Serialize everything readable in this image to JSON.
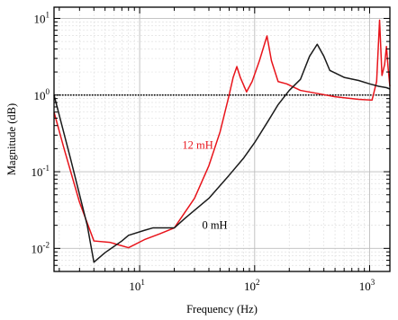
{
  "chart_data": {
    "type": "line",
    "xlabel": "Frequency (Hz)",
    "ylabel": "Magnitude (dB)",
    "xscale": "log",
    "yscale": "log",
    "xlim": [
      1.8,
      1500
    ],
    "ylim": [
      0.005,
      14
    ],
    "grid": true,
    "x_ticks": [
      {
        "value": 10,
        "base": "10",
        "exp": "1"
      },
      {
        "value": 100,
        "base": "10",
        "exp": "2"
      },
      {
        "value": 1000,
        "base": "10",
        "exp": "3"
      }
    ],
    "y_ticks": [
      {
        "value": 0.01,
        "base": "10",
        "exp": "-2"
      },
      {
        "value": 0.1,
        "base": "10",
        "exp": "-1"
      },
      {
        "value": 1,
        "base": "10",
        "exp": "0"
      },
      {
        "value": 10,
        "base": "10",
        "exp": "1"
      }
    ],
    "reference_line": {
      "y": 1.0,
      "style": "dotted",
      "color": "#000000"
    },
    "series": [
      {
        "name": "12 mH",
        "color": "#e8141b",
        "points": [
          [
            1.8,
            0.6
          ],
          [
            2.2,
            0.2
          ],
          [
            3.0,
            0.04
          ],
          [
            4.0,
            0.0125
          ],
          [
            5.5,
            0.012
          ],
          [
            8.0,
            0.0102
          ],
          [
            11.0,
            0.013
          ],
          [
            15.0,
            0.0155
          ],
          [
            20.0,
            0.0185
          ],
          [
            30.0,
            0.045
          ],
          [
            40.0,
            0.12
          ],
          [
            50.0,
            0.33
          ],
          [
            60.0,
            1.0
          ],
          [
            65.0,
            1.7
          ],
          [
            70.0,
            2.35
          ],
          [
            75.0,
            1.7
          ],
          [
            85.0,
            1.1
          ],
          [
            95.0,
            1.5
          ],
          [
            110.0,
            2.8
          ],
          [
            128.0,
            5.9
          ],
          [
            140.0,
            2.8
          ],
          [
            160.0,
            1.5
          ],
          [
            190.0,
            1.4
          ],
          [
            250.0,
            1.15
          ],
          [
            350.0,
            1.05
          ],
          [
            500.0,
            0.95
          ],
          [
            800.0,
            0.88
          ],
          [
            1050.0,
            0.86
          ],
          [
            1150.0,
            1.5
          ],
          [
            1220.0,
            9.5
          ],
          [
            1280.0,
            1.8
          ],
          [
            1350.0,
            2.5
          ],
          [
            1400.0,
            4.3
          ],
          [
            1450.0,
            2.2
          ],
          [
            1500.0,
            1.3
          ]
        ]
      },
      {
        "name": "0 mH",
        "color": "#1a1a1a",
        "points": [
          [
            1.8,
            1.0
          ],
          [
            2.5,
            0.15
          ],
          [
            3.5,
            0.02
          ],
          [
            4.0,
            0.0066
          ],
          [
            5.0,
            0.0088
          ],
          [
            7.0,
            0.0125
          ],
          [
            8.0,
            0.0148
          ],
          [
            11.0,
            0.0172
          ],
          [
            13.0,
            0.0185
          ],
          [
            20.0,
            0.0185
          ],
          [
            25.0,
            0.025
          ],
          [
            40.0,
            0.045
          ],
          [
            60.0,
            0.09
          ],
          [
            80.0,
            0.15
          ],
          [
            100.0,
            0.24
          ],
          [
            130.0,
            0.45
          ],
          [
            160.0,
            0.75
          ],
          [
            200.0,
            1.15
          ],
          [
            250.0,
            1.6
          ],
          [
            300.0,
            3.2
          ],
          [
            350.0,
            4.6
          ],
          [
            400.0,
            3.2
          ],
          [
            450.0,
            2.1
          ],
          [
            600.0,
            1.7
          ],
          [
            800.0,
            1.55
          ],
          [
            1000.0,
            1.4
          ],
          [
            1200.0,
            1.3
          ],
          [
            1400.0,
            1.25
          ],
          [
            1500.0,
            1.2
          ]
        ]
      }
    ],
    "annotations": [
      {
        "text": "12 mH",
        "x": 32,
        "y": 0.2,
        "color": "#e8141b"
      },
      {
        "text": "0 mH",
        "x": 45,
        "y": 0.018,
        "color": "#000000"
      }
    ]
  }
}
